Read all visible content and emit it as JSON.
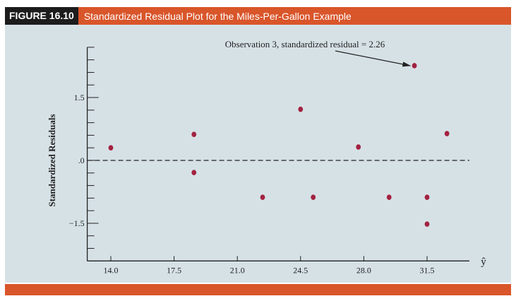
{
  "header": {
    "figure_label": "FIGURE 16.10",
    "title": "Standardized Residual Plot for the Miles-Per-Gallon Example"
  },
  "chart_data": {
    "type": "scatter",
    "title": "Standardized Residual Plot for the Miles-Per-Gallon Example",
    "xlabel": "ŷ",
    "ylabel": "Standardized Residuals",
    "xlim": [
      12.5,
      34.0
    ],
    "ylim": [
      -2.4,
      2.7
    ],
    "x_ticks": [
      14.0,
      17.5,
      21.0,
      24.5,
      28.0,
      31.5
    ],
    "x_tick_labels": [
      "14.0",
      "17.5",
      "21.0",
      "24.5",
      "28.0",
      "31.5"
    ],
    "y_ticks_labeled": [
      1.5,
      0,
      -1.5
    ],
    "y_tick_labels": [
      "1.5",
      ".0",
      "−1.5"
    ],
    "y_minor_step": 0.3,
    "reference_line": 0,
    "points": [
      {
        "x": 14.0,
        "y": 0.3
      },
      {
        "x": 18.6,
        "y": 0.62
      },
      {
        "x": 18.6,
        "y": -0.29
      },
      {
        "x": 22.4,
        "y": -0.88
      },
      {
        "x": 24.5,
        "y": 1.22
      },
      {
        "x": 25.2,
        "y": -0.88
      },
      {
        "x": 27.7,
        "y": 0.32
      },
      {
        "x": 29.4,
        "y": -0.88
      },
      {
        "x": 30.8,
        "y": 2.26
      },
      {
        "x": 31.5,
        "y": -0.88
      },
      {
        "x": 31.5,
        "y": -1.52
      },
      {
        "x": 32.6,
        "y": 0.64
      }
    ],
    "annotation": {
      "text": "Observation 3, standardized residual = 2.26",
      "target_index": 8
    },
    "point_color": "#a3223f"
  }
}
